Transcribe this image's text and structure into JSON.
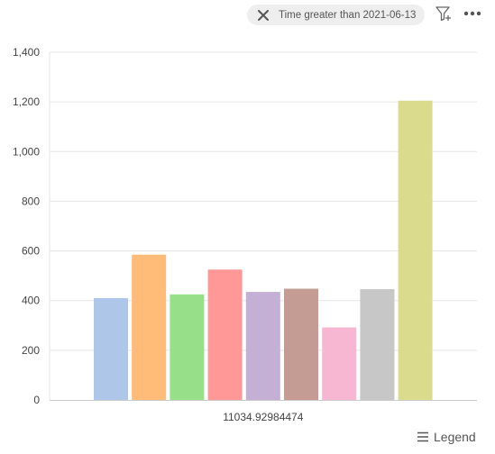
{
  "toolbar": {
    "filter_chip": {
      "text": "Time greater than 2021-06-13"
    },
    "legend_label": "Legend"
  },
  "chart_data": {
    "type": "bar",
    "categories": [
      "11034.92984474"
    ],
    "series": [
      {
        "values": [
          410
        ],
        "color": "#aec7e8"
      },
      {
        "values": [
          585
        ],
        "color": "#ffbb78"
      },
      {
        "values": [
          425
        ],
        "color": "#98df8a"
      },
      {
        "values": [
          525
        ],
        "color": "#ff9896"
      },
      {
        "values": [
          435
        ],
        "color": "#c5b0d5"
      },
      {
        "values": [
          448
        ],
        "color": "#c49c94"
      },
      {
        "values": [
          292
        ],
        "color": "#f7b6d2"
      },
      {
        "values": [
          446
        ],
        "color": "#c7c7c7"
      },
      {
        "values": [
          1205
        ],
        "color": "#dbdb8d"
      }
    ],
    "yticks": [
      "0",
      "200",
      "400",
      "600",
      "800",
      "1,000",
      "1,200",
      "1,400"
    ],
    "ylim": [
      0,
      1400
    ],
    "grid": true
  }
}
